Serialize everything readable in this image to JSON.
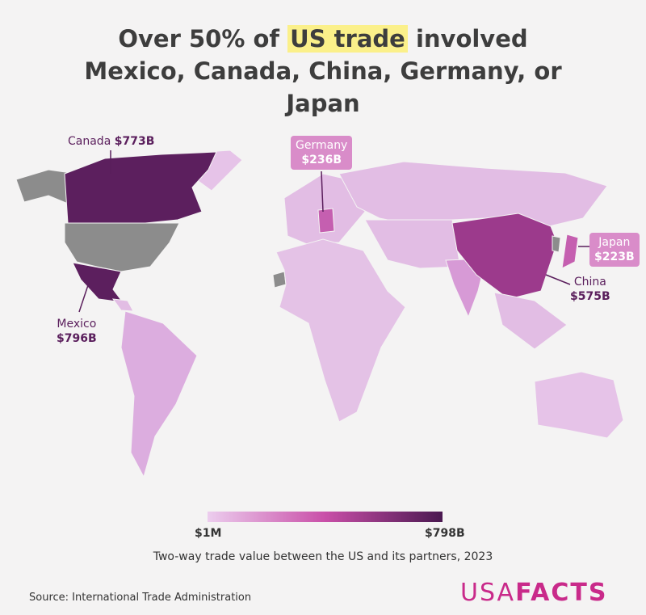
{
  "header": {
    "title_before": "Over 50% of",
    "title_highlight": "US trade",
    "title_after": "involved Mexico, Canada, China, Germany, or Japan"
  },
  "labels": [
    {
      "country": "Canada",
      "value": "$773B"
    },
    {
      "country": "Germany",
      "value": "$236B"
    },
    {
      "country": "Japan",
      "value": "$223B"
    },
    {
      "country": "China",
      "value": "$575B"
    },
    {
      "country": "Mexico",
      "value": "$796B"
    }
  ],
  "legend": {
    "min": "$1M",
    "max": "$798B",
    "caption": "Two-way trade value between the US and its partners, 2023"
  },
  "footer": {
    "source": "Source: International Trade Administration",
    "logo_left": "USA",
    "logo_right": "FACTS"
  }
}
